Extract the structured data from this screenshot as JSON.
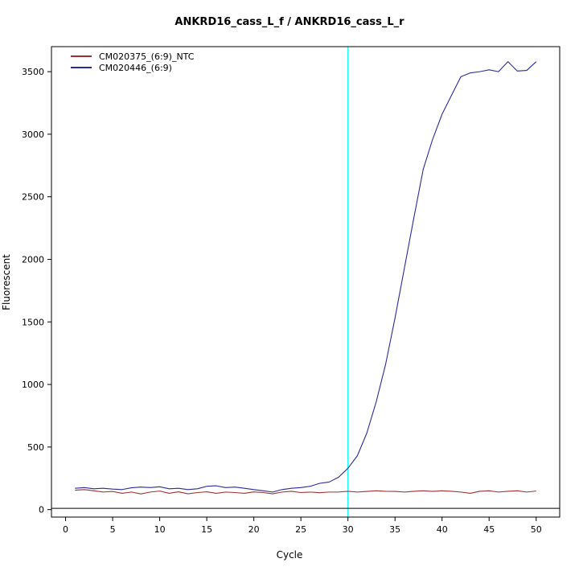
{
  "chart_data": {
    "type": "line",
    "title": "ANKRD16_cass_L_f / ANKRD16_cass_L_r",
    "xlabel": "Cycle",
    "ylabel": "Fluorescent",
    "xlim": [
      -1.5,
      52.5
    ],
    "ylim": [
      -60,
      3700
    ],
    "xticks": [
      0,
      5,
      10,
      15,
      20,
      25,
      30,
      35,
      40,
      45,
      50
    ],
    "yticks": [
      0,
      500,
      1000,
      1500,
      2000,
      2500,
      3000,
      3500
    ],
    "grid": false,
    "legend_position": "top-left",
    "axis_color": "#000000",
    "vertical_marker_line": {
      "x": 30,
      "color": "#00ffff"
    },
    "baseline_line": {
      "y": 10,
      "color": "#000000"
    },
    "x": [
      1,
      2,
      3,
      4,
      5,
      6,
      7,
      8,
      9,
      10,
      11,
      12,
      13,
      14,
      15,
      16,
      17,
      18,
      19,
      20,
      21,
      22,
      23,
      24,
      25,
      26,
      27,
      28,
      29,
      30,
      31,
      32,
      33,
      34,
      35,
      36,
      37,
      38,
      39,
      40,
      41,
      42,
      43,
      44,
      45,
      46,
      47,
      48,
      49,
      50
    ],
    "series": [
      {
        "name": "CM020375_(6:9)_NTC",
        "color": "#993333",
        "values": [
          155,
          160,
          150,
          140,
          145,
          130,
          140,
          125,
          140,
          148,
          130,
          142,
          126,
          136,
          142,
          130,
          140,
          136,
          130,
          141,
          136,
          126,
          140,
          146,
          136,
          140,
          135,
          140,
          140,
          146,
          140,
          145,
          150,
          146,
          145,
          140,
          146,
          150,
          145,
          150,
          146,
          140,
          130,
          146,
          150,
          140,
          146,
          150,
          140,
          148
        ]
      },
      {
        "name": "CM020446_(6:9)",
        "color": "#2b2b99",
        "values": [
          170,
          176,
          166,
          170,
          164,
          160,
          174,
          180,
          176,
          182,
          166,
          170,
          160,
          166,
          186,
          190,
          176,
          180,
          170,
          160,
          150,
          140,
          160,
          170,
          176,
          186,
          210,
          220,
          258,
          330,
          430,
          610,
          860,
          1160,
          1530,
          1930,
          2330,
          2720,
          2960,
          3160,
          3310,
          3460,
          3490,
          3500,
          3515,
          3500,
          3580,
          3505,
          3510,
          3580
        ]
      }
    ]
  }
}
